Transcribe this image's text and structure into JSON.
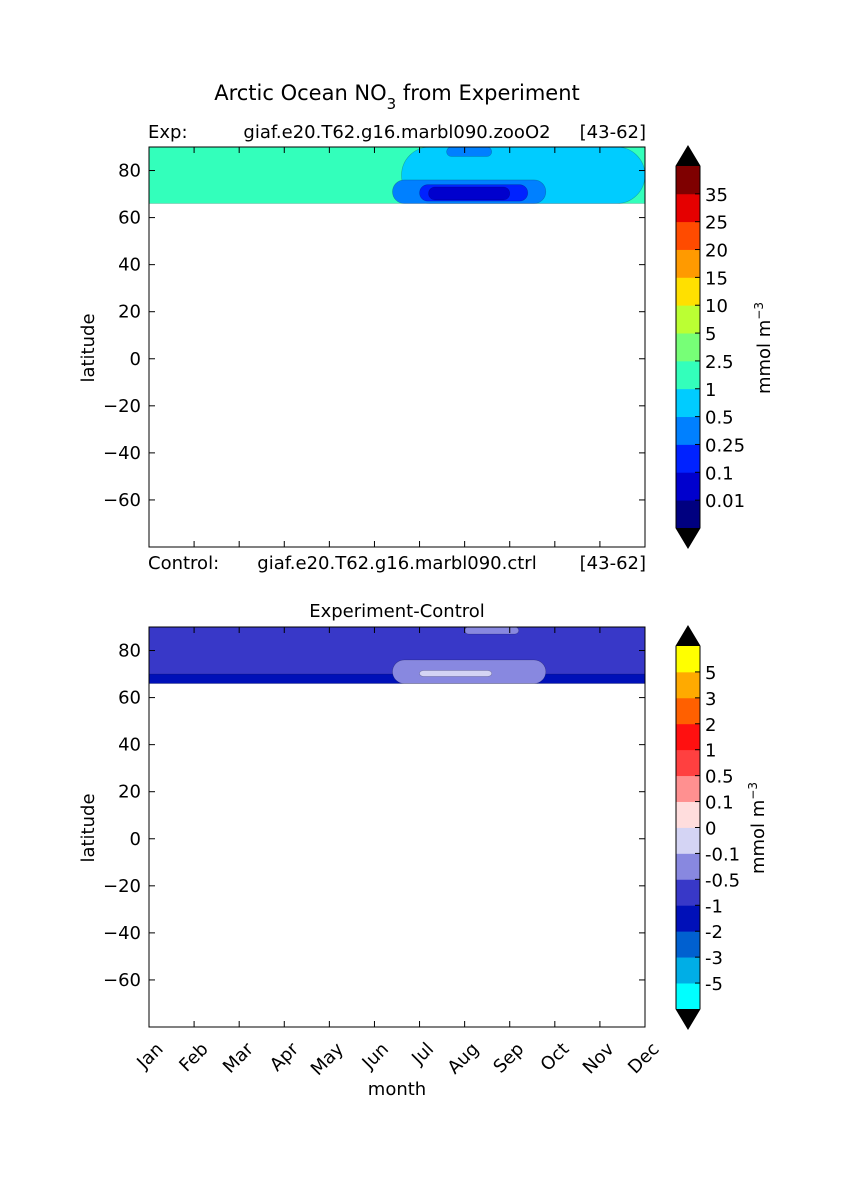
{
  "figure": {
    "title_main": "Arctic Ocean NO",
    "title_sub": "3",
    "title_rest": " from Experiment"
  },
  "panel_top": {
    "exp_prefix": "Exp:",
    "exp_case": "giaf.e20.T62.g16.marbl090.zooO2",
    "exp_years": "[43-62]",
    "ctrl_prefix": "Control:",
    "ctrl_case": "giaf.e20.T62.g16.marbl090.ctrl",
    "ctrl_years": "[43-62]"
  },
  "panel_bottom": {
    "title": "Experiment-Control"
  },
  "chart_data": [
    {
      "type": "heatmap",
      "title": "Exp: giaf.e20.T62.g16.marbl090.zooO2 [43-62]",
      "xlabel": "",
      "ylabel": "latitude",
      "ylim": [
        -80,
        90
      ],
      "yticks": [
        80,
        60,
        40,
        20,
        0,
        -20,
        -40,
        -60
      ],
      "x": [
        "Jan",
        "Feb",
        "Mar",
        "Apr",
        "May",
        "Jun",
        "Jul",
        "Aug",
        "Sep",
        "Oct",
        "Nov",
        "Dec"
      ],
      "data_lat_range": [
        66,
        90
      ],
      "colorbar": {
        "label": "mmol m",
        "label_sup": "−3",
        "levels": [
          "0.01",
          "0.1",
          "0.25",
          "0.5",
          "1",
          "2.5",
          "5",
          "10",
          "15",
          "20",
          "25",
          "35"
        ],
        "colors": [
          "#000080",
          "#0000cd",
          "#0022ff",
          "#0080ff",
          "#00ccff",
          "#33ffbb",
          "#77ff77",
          "#bbff33",
          "#ffe000",
          "#ff9a00",
          "#ff4b00",
          "#e50000",
          "#7f0000"
        ],
        "extend": "both",
        "extend_color": "#000000"
      },
      "regions": [
        {
          "band": 5,
          "x": [
            0,
            11
          ],
          "y": [
            66,
            90
          ]
        },
        {
          "band": 4,
          "x": [
            5.6,
            11
          ],
          "y": [
            66,
            90
          ]
        },
        {
          "band": 3,
          "x": [
            5.4,
            8.8
          ],
          "y": [
            66,
            76
          ]
        },
        {
          "band": 2,
          "x": [
            6,
            8.4
          ],
          "y": [
            67,
            74
          ]
        },
        {
          "band": 1,
          "x": [
            6.2,
            8
          ],
          "y": [
            67.5,
            73
          ]
        },
        {
          "band": 3,
          "x": [
            6.6,
            7.6
          ],
          "y": [
            86,
            90
          ]
        }
      ]
    },
    {
      "type": "heatmap",
      "title": "Experiment-Control",
      "xlabel": "month",
      "ylabel": "latitude",
      "ylim": [
        -80,
        90
      ],
      "yticks": [
        80,
        60,
        40,
        20,
        0,
        -20,
        -40,
        -60
      ],
      "x": [
        "Jan",
        "Feb",
        "Mar",
        "Apr",
        "May",
        "Jun",
        "Jul",
        "Aug",
        "Sep",
        "Oct",
        "Nov",
        "Dec"
      ],
      "data_lat_range": [
        66,
        90
      ],
      "colorbar": {
        "label": "mmol m",
        "label_sup": "−3",
        "levels": [
          "-5",
          "-3",
          "-2",
          "-1",
          "-0.5",
          "-0.1",
          "0",
          "0.1",
          "0.5",
          "1",
          "2",
          "3",
          "5"
        ],
        "colors": [
          "#00ffff",
          "#00aee6",
          "#0060d0",
          "#0010b8",
          "#3838c8",
          "#8888e0",
          "#d4d4f4",
          "#ffdddd",
          "#ff9090",
          "#ff4040",
          "#ff1010",
          "#ff6000",
          "#ffaa00",
          "#ffff00"
        ],
        "extend": "both",
        "extend_color": "#000000"
      },
      "regions": [
        {
          "band": 4,
          "x": [
            0,
            11
          ],
          "y": [
            66,
            90
          ]
        },
        {
          "band": 3,
          "x": [
            0,
            11
          ],
          "y": [
            66,
            70
          ]
        },
        {
          "band": 5,
          "x": [
            5.4,
            8.8
          ],
          "y": [
            66,
            76
          ]
        },
        {
          "band": 6,
          "x": [
            6,
            7.6
          ],
          "y": [
            69,
            71.5
          ]
        },
        {
          "band": 5,
          "x": [
            7,
            8.2
          ],
          "y": [
            87,
            90
          ]
        }
      ]
    }
  ]
}
